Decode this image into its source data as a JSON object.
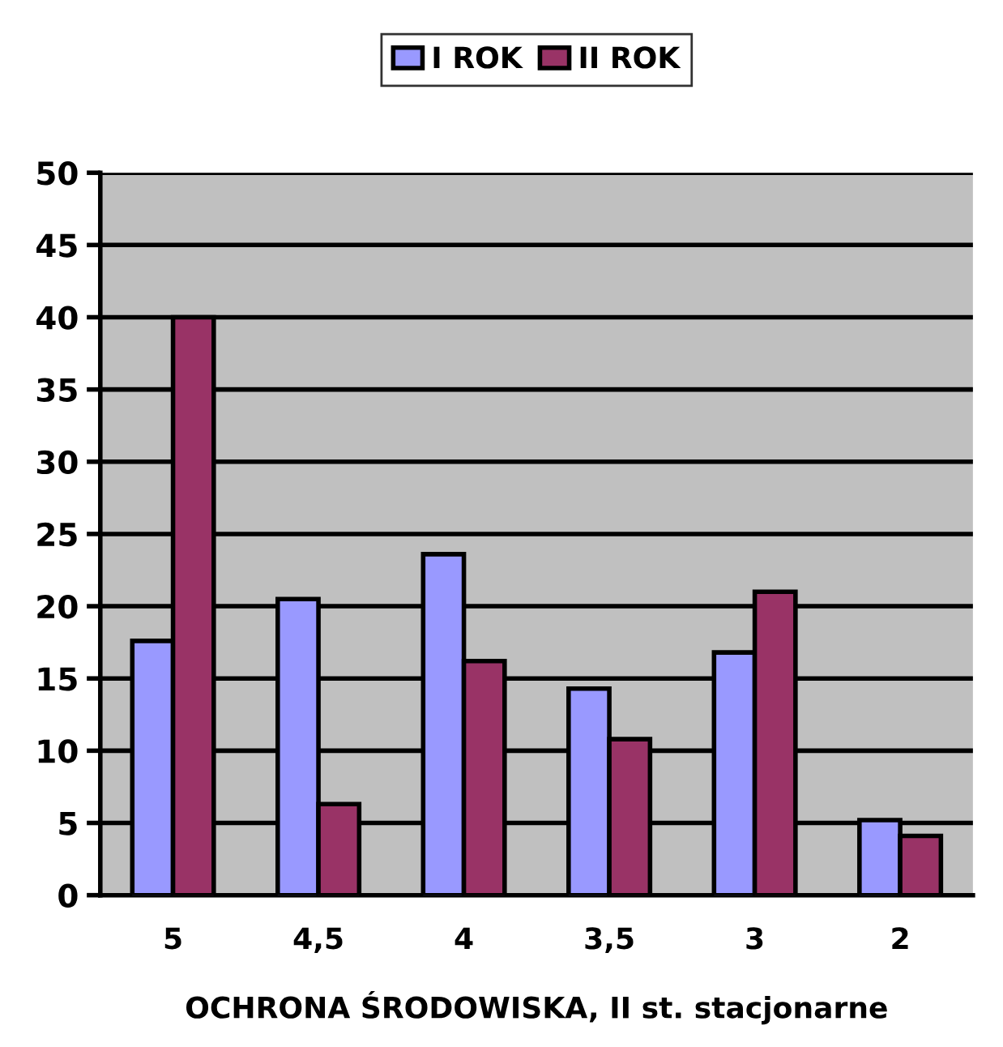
{
  "chart_data": {
    "type": "bar",
    "xlabel": "OCHRONA ŚRODOWISKA, II st. stacjonarne",
    "categories": [
      "5",
      "4,5",
      "4",
      "3,5",
      "3",
      "2"
    ],
    "series": [
      {
        "name": "I ROK",
        "color": "#9999ff",
        "values": [
          17.6,
          20.5,
          23.6,
          14.3,
          16.8,
          5.2
        ]
      },
      {
        "name": "II ROK",
        "color": "#993366",
        "values": [
          40,
          6.3,
          16.2,
          10.8,
          21.0,
          4.1
        ]
      }
    ],
    "ylim": [
      0,
      50
    ],
    "yticks": [
      0,
      5,
      10,
      15,
      20,
      25,
      30,
      35,
      40,
      45,
      50
    ],
    "grid": "y",
    "legend": "top"
  }
}
